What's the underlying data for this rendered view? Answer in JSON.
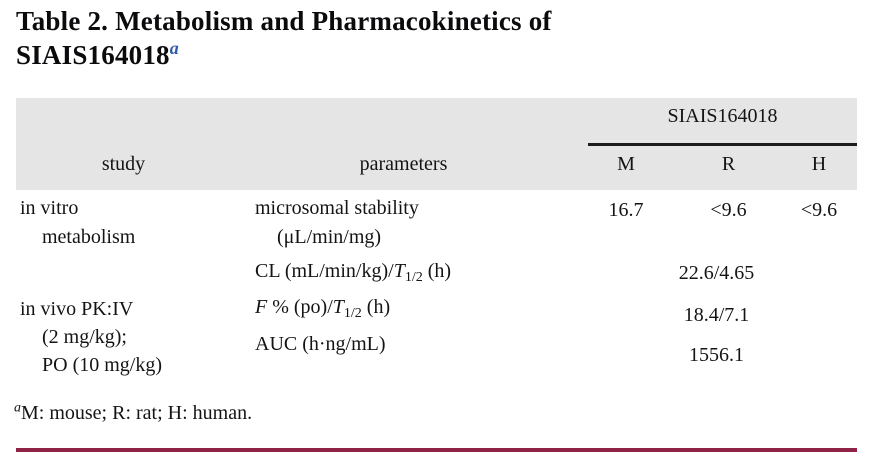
{
  "colors": {
    "accent_rule": "#8e2345",
    "title_footnote_blue": "#2e5cac",
    "header_background": "#e5e5e5",
    "header_underline": "#1b1b1b",
    "text": "#141414"
  },
  "title": {
    "text": "Table 2. Metabolism and Pharmacokinetics of SIAIS164018",
    "footnote_marker": "a"
  },
  "table": {
    "compound_header": "SIAIS164018",
    "columns": {
      "study": "study",
      "parameters": "parameters",
      "m": "M",
      "r": "R",
      "h": "H"
    },
    "rows": [
      {
        "study_line1": "in vitro",
        "study_line2": "metabolism",
        "param_line1": "microsomal stability",
        "param_line2": "(μL/min/mg)",
        "value_m": "16.7",
        "value_r": "<9.6",
        "value_h": "<9.6"
      },
      {
        "param_prefix": "CL (mL/min/kg)/",
        "param_t": "T",
        "param_sub": "1/2",
        "param_suffix": " (h)",
        "merged_value": "22.6/4.65"
      },
      {
        "study_line1": "in vivo PK:IV",
        "study_line2": "(2 mg/kg);",
        "study_line3": "PO (10 mg/kg)",
        "param_f": "F",
        "param_prefix": " % (po)/",
        "param_t": "T",
        "param_sub": "1/2",
        "param_suffix": " (h)",
        "merged_value": "18.4/7.1"
      },
      {
        "param_line1": "AUC (h·ng/mL)",
        "merged_value": "1556.1"
      }
    ]
  },
  "footnote": {
    "marker": "a",
    "text": "M: mouse; R: rat; H: human."
  }
}
